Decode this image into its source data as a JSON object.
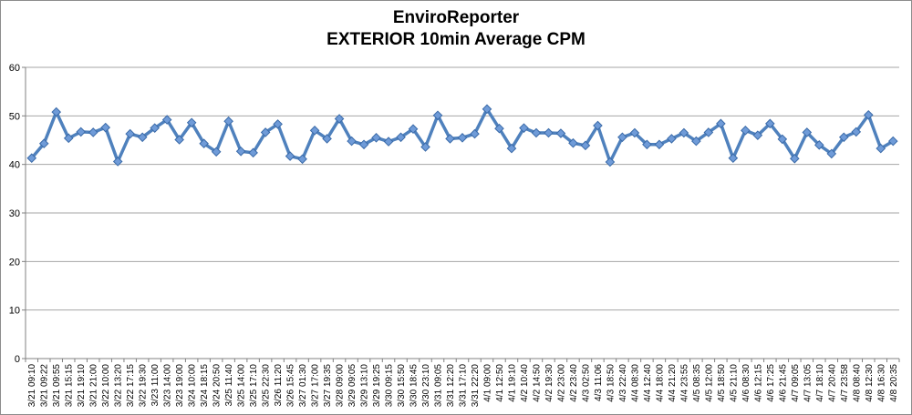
{
  "chart_data": {
    "type": "line",
    "title": "EnviroReporter",
    "subtitle": "EXTERIOR 10min Average CPM",
    "xlabel": "",
    "ylabel": "",
    "ylim": [
      0,
      60
    ],
    "yticks": [
      "0",
      "10",
      "20",
      "30",
      "40",
      "50",
      "60"
    ],
    "grid": true,
    "legend": "none",
    "colors": {
      "line": "#4f81bd",
      "marker_fill": "#6f9bd8",
      "marker_stroke": "#3a6aa8",
      "grid": "#a6a6a6",
      "axis": "#808080"
    },
    "categories": [
      "3/21 09:10",
      "3/21 09:22",
      "3/21 09:55",
      "3/21 15:15",
      "3/21 19:10",
      "3/21 21:00",
      "3/22 10:00",
      "3/22 13:20",
      "3/22 17:15",
      "3/22 19:30",
      "3/23 11:00",
      "3/23 14:00",
      "3/23 19:00",
      "3/24 10:00",
      "3/24 18:15",
      "3/24 20:50",
      "3/25 11:40",
      "3/25 14:00",
      "3/25 17:10",
      "3/25 22:30",
      "3/26 11:20",
      "3/26 15:45",
      "3/27 01:30",
      "3/27 17:00",
      "3/27 19:35",
      "3/28 09:00",
      "3/29 09:05",
      "3/29 13:10",
      "3/29 19:25",
      "3/30 09:15",
      "3/30 15:50",
      "3/30 18:45",
      "3/30 23:10",
      "3/31 09:05",
      "3/31 12:20",
      "3/31 17:10",
      "3/31 22:20",
      "4/1 09:00",
      "4/1 12:50",
      "4/1 19:10",
      "4/2 10:40",
      "4/2 14:50",
      "4/2 19:30",
      "4/2 23:00",
      "4/2 23:40",
      "4/3 02:50",
      "4/3 11:06",
      "4/3 18:50",
      "4/3 22:40",
      "4/4 08:30",
      "4/4 12:40",
      "4/4 18:00",
      "4/4 21:20",
      "4/4 23:55",
      "4/5 08:35",
      "4/5 12:00",
      "4/5 18:50",
      "4/5 21:10",
      "4/6 08:30",
      "4/6 12:15",
      "4/6 17:25",
      "4/6 21:45",
      "4/7 09:05",
      "4/7 13:05",
      "4/7 18:10",
      "4/7 20:40",
      "4/7 23:58",
      "4/8 08:40",
      "4/8 12:30",
      "4/8 16:30",
      "4/8 20:35"
    ],
    "series": [
      {
        "values": [
          41.3,
          44.3,
          50.8,
          45.4,
          46.7,
          46.6,
          47.6,
          40.6,
          46.3,
          45.6,
          47.5,
          49.2,
          45.1,
          48.6,
          44.3,
          42.6,
          48.9,
          42.7,
          42.4,
          46.6,
          48.3,
          41.7,
          41.1,
          47.0,
          45.3,
          49.4,
          44.8,
          44.1,
          45.5,
          44.7,
          45.6,
          47.3,
          43.6,
          50.1,
          45.3,
          45.5,
          46.3,
          51.4,
          47.4,
          43.3,
          47.5,
          46.5,
          46.5,
          46.4,
          44.4,
          43.9,
          48.0,
          40.5,
          45.6,
          46.5,
          44.1,
          44.1,
          45.3,
          46.5,
          44.8,
          46.6,
          48.4,
          41.3,
          47.0,
          46.0,
          48.4,
          45.2,
          41.2,
          46.6,
          44.0,
          42.2,
          45.6,
          46.7,
          50.2,
          43.3,
          44.8
        ]
      }
    ]
  }
}
